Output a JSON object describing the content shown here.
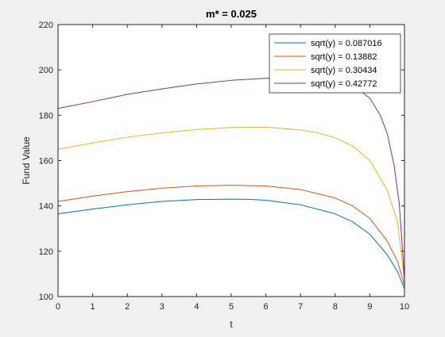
{
  "chart_data": {
    "type": "line",
    "title": "m* = 0.025",
    "xlabel": "t",
    "ylabel": "Fund Value",
    "xlim": [
      0,
      10
    ],
    "ylim": [
      100,
      220
    ],
    "xticks": [
      "0",
      "1",
      "2",
      "3",
      "4",
      "5",
      "6",
      "7",
      "8",
      "9",
      "10"
    ],
    "yticks": [
      "100",
      "120",
      "140",
      "160",
      "180",
      "200",
      "220"
    ],
    "grid": false,
    "legend_position": "top-right",
    "series": [
      {
        "name": "sqrt(y) = 0.087016",
        "color": "#0072bd",
        "x": [
          0,
          1,
          2,
          3,
          4,
          5,
          5.5,
          6,
          7,
          8,
          8.5,
          9,
          9.5,
          9.8,
          10
        ],
        "y": [
          136.5,
          138.6,
          140.5,
          142.0,
          142.8,
          143.0,
          142.9,
          142.5,
          140.5,
          136.5,
          133.0,
          127.5,
          118.5,
          111.0,
          103.5
        ]
      },
      {
        "name": "sqrt(y) = 0.13882",
        "color": "#d95319",
        "x": [
          0,
          1,
          2,
          3,
          4,
          5,
          6,
          7,
          8,
          8.5,
          9,
          9.5,
          9.8,
          10
        ],
        "y": [
          142.0,
          144.3,
          146.3,
          147.8,
          148.8,
          149.1,
          148.8,
          147.2,
          143.5,
          140.0,
          134.5,
          124.5,
          115.5,
          105.0
        ]
      },
      {
        "name": "sqrt(y) = 0.30434",
        "color": "#edb120",
        "x": [
          0,
          1,
          2,
          3,
          4,
          5,
          6,
          7,
          7.5,
          8,
          8.5,
          9,
          9.5,
          9.8,
          10
        ],
        "y": [
          165.0,
          167.8,
          170.3,
          172.2,
          173.7,
          174.6,
          174.8,
          173.5,
          172.2,
          170.0,
          166.5,
          160.0,
          147.0,
          133.0,
          107.0
        ]
      },
      {
        "name": "sqrt(y) = 0.42772",
        "color": "#7e2f8e",
        "x": [
          0,
          1,
          2,
          3,
          4,
          5,
          6,
          7,
          8,
          8.5,
          9,
          9.3,
          9.5,
          9.7,
          9.85,
          10
        ],
        "y": [
          183.0,
          186.0,
          189.2,
          191.6,
          193.8,
          195.4,
          196.3,
          196.5,
          195.6,
          193.5,
          187.5,
          180.0,
          172.0,
          158.0,
          141.0,
          108.0
        ]
      }
    ]
  }
}
